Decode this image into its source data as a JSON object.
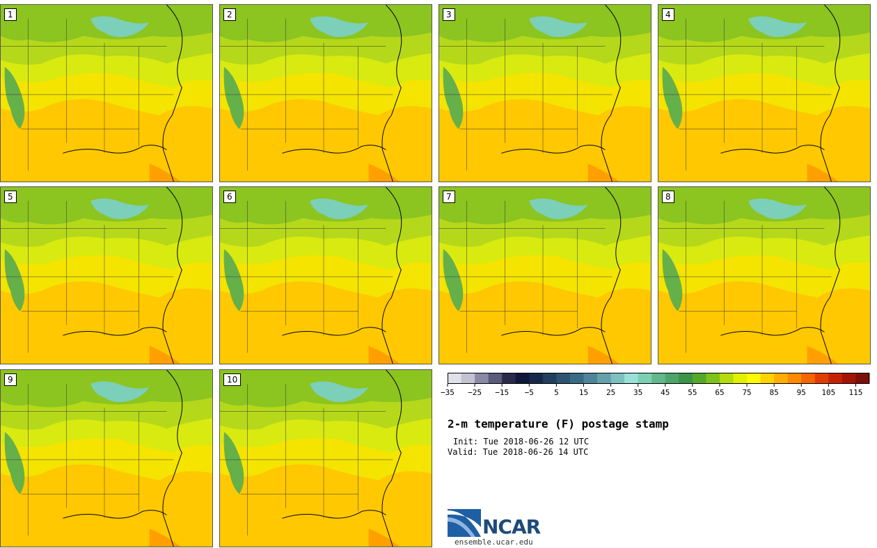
{
  "panels": [
    {
      "label": "1"
    },
    {
      "label": "2"
    },
    {
      "label": "3"
    },
    {
      "label": "4"
    },
    {
      "label": "5"
    },
    {
      "label": "6"
    },
    {
      "label": "7"
    },
    {
      "label": "8"
    },
    {
      "label": "9"
    },
    {
      "label": "10"
    }
  ],
  "colorbar": {
    "colors": [
      "#e0e0e8",
      "#c2c2d2",
      "#8a8aa6",
      "#5a5a7a",
      "#2a2a4a",
      "#0e1838",
      "#16284a",
      "#22405e",
      "#2e5472",
      "#3a6a86",
      "#4e8498",
      "#66a0aa",
      "#7ec0c0",
      "#98e0d8",
      "#7cd0b0",
      "#62b88c",
      "#4ea46a",
      "#3c9448",
      "#56a82a",
      "#7ec21a",
      "#b2dc0e",
      "#e2f000",
      "#fffa00",
      "#ffd200",
      "#ffae00",
      "#ff8a00",
      "#f46400",
      "#e03e00",
      "#c42200",
      "#a01400",
      "#7c1008"
    ],
    "ticks": [
      "−35",
      "−25",
      "−15",
      "−5",
      "5",
      "15",
      "25",
      "35",
      "45",
      "55",
      "65",
      "75",
      "85",
      "95",
      "105",
      "115"
    ]
  },
  "title": "2-m temperature (F) postage stamp",
  "init": "Init: Tue 2018-06-26 12 UTC",
  "valid": "Valid: Tue 2018-06-26 14 UTC",
  "logo": {
    "text": "NCAR",
    "site": "ensemble.ucar.edu"
  }
}
